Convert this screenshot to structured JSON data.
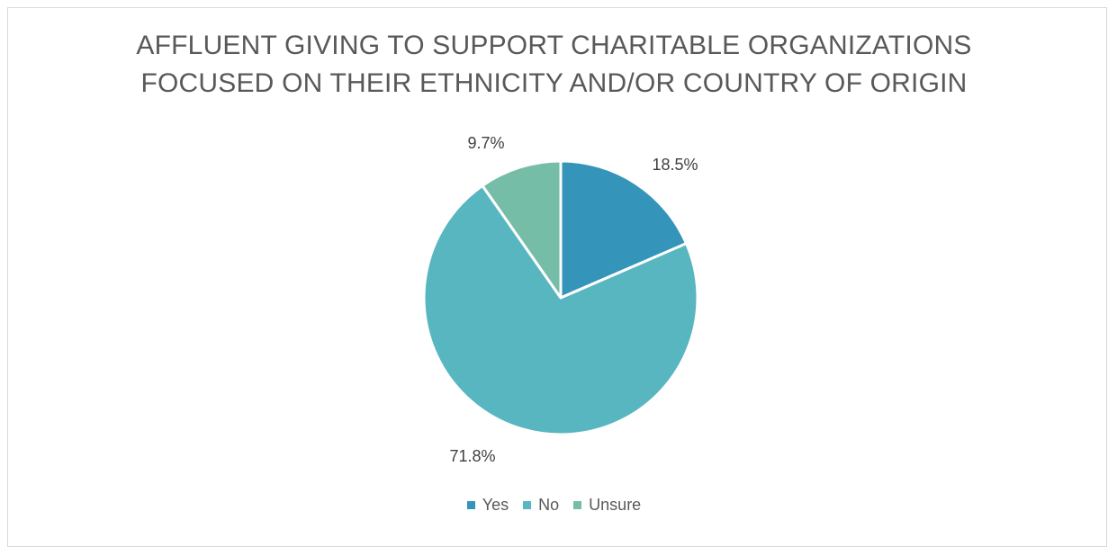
{
  "chart_data": {
    "type": "pie",
    "title_lines": [
      "AFFLUENT GIVING TO SUPPORT CHARITABLE ORGANIZATIONS",
      "FOCUSED ON THEIR ETHNICITY AND/OR COUNTRY OF ORIGIN"
    ],
    "categories": [
      "Yes",
      "No",
      "Unsure"
    ],
    "values": [
      18.5,
      71.8,
      9.7
    ],
    "data_labels": [
      "18.5%",
      "71.8%",
      "9.7%"
    ],
    "colors": [
      "#3494BA",
      "#58B6C0",
      "#75BDA7"
    ],
    "start_angle_degrees": 0,
    "direction": "clockwise",
    "legend_position": "bottom"
  }
}
